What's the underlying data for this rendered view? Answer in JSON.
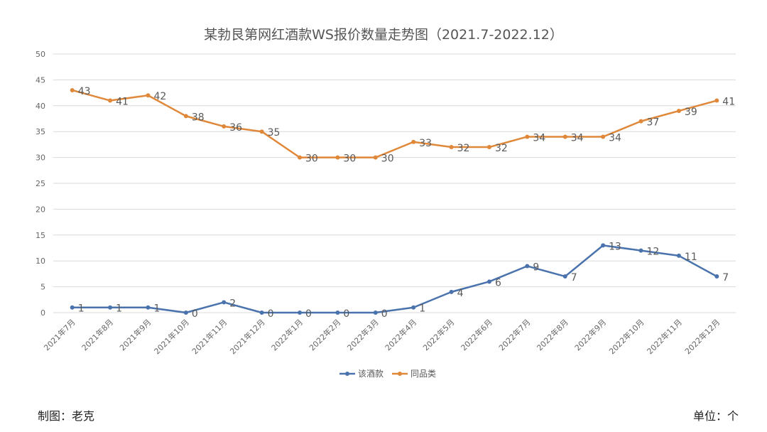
{
  "chart_data": {
    "type": "line",
    "title": "某勃艮第网红酒款WS报价数量走势图（2021.7-2022.12）",
    "xlabel": "",
    "ylabel": "",
    "ylim": [
      0,
      50
    ],
    "yticks": [
      0,
      5,
      10,
      15,
      20,
      25,
      30,
      35,
      40,
      45,
      50
    ],
    "grid": true,
    "legend_position": "bottom",
    "categories": [
      "2021年7月",
      "2021年8月",
      "2021年9月",
      "2021年10月",
      "2021年11月",
      "2021年12月",
      "2022年1月",
      "2022年2月",
      "2022年3月",
      "2022年4月",
      "2022年5月",
      "2022年6月",
      "2022年7月",
      "2022年8月",
      "2022年9月",
      "2022年10月",
      "2022年11月",
      "2022年12月"
    ],
    "series": [
      {
        "name": "该酒款",
        "color": "#4a73ad",
        "values": [
          1,
          1,
          1,
          0,
          2,
          0,
          0,
          0,
          0,
          1,
          4,
          6,
          9,
          7,
          13,
          12,
          11,
          7
        ]
      },
      {
        "name": "同品类",
        "color": "#e0883a",
        "values": [
          43,
          41,
          42,
          38,
          36,
          35,
          30,
          30,
          30,
          33,
          32,
          32,
          34,
          34,
          34,
          37,
          39,
          41
        ]
      }
    ]
  },
  "footer": {
    "maker": "制图：老克",
    "unit": "单位：个"
  }
}
